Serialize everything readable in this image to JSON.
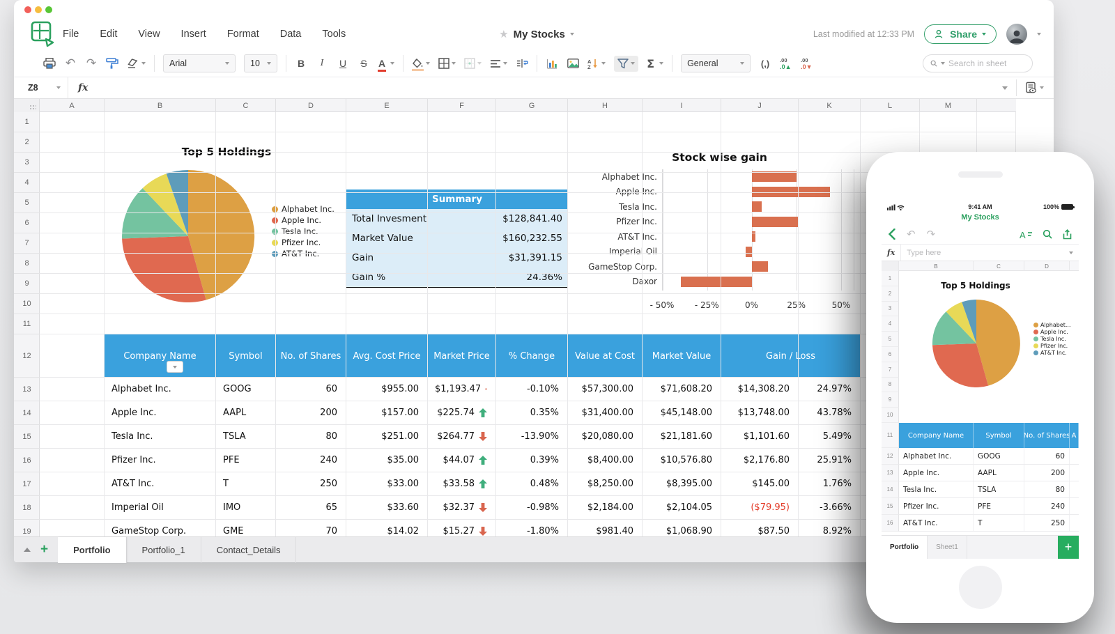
{
  "colors": {
    "accent_green": "#2f9e69",
    "header_blue": "#3aa1dd",
    "summary_bg": "#dcedf8",
    "bar_red": "#d9704f",
    "up_green": "#3fae7c",
    "down_red": "#d9654e",
    "negative_red": "#e33a27"
  },
  "menubar": {
    "menus": [
      "File",
      "Edit",
      "View",
      "Insert",
      "Format",
      "Data",
      "Tools"
    ],
    "doc_title": "My Stocks",
    "last_modified": "Last modified at 12:33 PM",
    "share_label": "Share"
  },
  "toolbar": {
    "font_name": "Arial",
    "font_size": "10",
    "bold": "B",
    "italic": "I",
    "underline": "U",
    "strikethrough": "S",
    "font_color": "A",
    "number_format": "General",
    "comma_format": "(,)",
    "increase_decimal": ".00",
    "decrease_decimal": ".00",
    "sum_label": "Σ",
    "sort_label": "A/Z",
    "search_placeholder": "Search in sheet"
  },
  "formula_bar": {
    "cell_ref": "Z8",
    "fx_label": "fx"
  },
  "grid": {
    "columns": [
      "A",
      "B",
      "C",
      "D",
      "E",
      "F",
      "G",
      "H",
      "I",
      "J",
      "K",
      "L",
      "M"
    ],
    "rows": [
      "1",
      "2",
      "3",
      "4",
      "5",
      "6",
      "7",
      "8",
      "9",
      "10",
      "11",
      "12",
      "13",
      "14",
      "15",
      "16",
      "17",
      "18",
      "19"
    ]
  },
  "chart_data": [
    {
      "type": "pie",
      "title": "Top 5 Holdings",
      "labels": [
        "Alphabet Inc.",
        "Apple Inc.",
        "Tesla Inc.",
        "Pfizer Inc.",
        "AT&T Inc."
      ],
      "values": [
        71608.2,
        45148.0,
        21181.6,
        10576.8,
        8395.0
      ],
      "colors": [
        "#dda044",
        "#e06950",
        "#74c3a0",
        "#e8d957",
        "#5e9cba"
      ],
      "legend_position": "right"
    },
    {
      "type": "bar",
      "orientation": "horizontal",
      "title": "Stock wise gain",
      "categories": [
        "Alphabet Inc.",
        "Apple Inc.",
        "Tesla Inc.",
        "Pfizer Inc.",
        "AT&T Inc.",
        "Imperial Oil",
        "GameStop Corp.",
        "Daxor"
      ],
      "values": [
        24.97,
        43.78,
        5.49,
        25.91,
        1.76,
        -3.66,
        8.92,
        -39.7
      ],
      "xlim": [
        -50,
        57
      ],
      "xtick_values": [
        -50,
        -25,
        0,
        25,
        50
      ],
      "xtick_labels": [
        "- 50%",
        "- 25%",
        "0%",
        "25%",
        "50%"
      ],
      "bar_color": "#d9704f",
      "grid": true,
      "ylabel": "",
      "xlabel": ""
    }
  ],
  "summary": {
    "title": "Summary",
    "rows": [
      {
        "label": "Total Invesment",
        "value": "$128,841.40"
      },
      {
        "label": "Market Value",
        "value": "$160,232.55"
      },
      {
        "label": "Gain",
        "value": "$31,391.15"
      },
      {
        "label": "Gain %",
        "value": "24.36%"
      }
    ]
  },
  "table": {
    "headers": [
      "Company Name",
      "Symbol",
      "No. of Shares",
      "Avg. Cost Price",
      "Market Price",
      "% Change",
      "Value at Cost",
      "Market Value",
      "Gain / Loss"
    ],
    "rows": [
      {
        "company": "Alphabet Inc.",
        "symbol": "GOOG",
        "shares": "60",
        "avg_cost": "$955.00",
        "market_price": "$1,193.47",
        "trend": "down",
        "pct_change": "-0.10%",
        "value_at_cost": "$57,300.00",
        "market_value": "$71,608.20",
        "gain": "$14,308.20",
        "gain_pct": "24.97%",
        "gain_neg": false
      },
      {
        "company": "Apple Inc.",
        "symbol": "AAPL",
        "shares": "200",
        "avg_cost": "$157.00",
        "market_price": "$225.74",
        "trend": "up",
        "pct_change": "0.35%",
        "value_at_cost": "$31,400.00",
        "market_value": "$45,148.00",
        "gain": "$13,748.00",
        "gain_pct": "43.78%",
        "gain_neg": false
      },
      {
        "company": "Tesla Inc.",
        "symbol": "TSLA",
        "shares": "80",
        "avg_cost": "$251.00",
        "market_price": "$264.77",
        "trend": "down",
        "pct_change": "-13.90%",
        "value_at_cost": "$20,080.00",
        "market_value": "$21,181.60",
        "gain": "$1,101.60",
        "gain_pct": "5.49%",
        "gain_neg": false
      },
      {
        "company": "Pfizer Inc.",
        "symbol": "PFE",
        "shares": "240",
        "avg_cost": "$35.00",
        "market_price": "$44.07",
        "trend": "up",
        "pct_change": "0.39%",
        "value_at_cost": "$8,400.00",
        "market_value": "$10,576.80",
        "gain": "$2,176.80",
        "gain_pct": "25.91%",
        "gain_neg": false
      },
      {
        "company": "AT&T Inc.",
        "symbol": "T",
        "shares": "250",
        "avg_cost": "$33.00",
        "market_price": "$33.58",
        "trend": "up",
        "pct_change": "0.48%",
        "value_at_cost": "$8,250.00",
        "market_value": "$8,395.00",
        "gain": "$145.00",
        "gain_pct": "1.76%",
        "gain_neg": false
      },
      {
        "company": "Imperial Oil",
        "symbol": "IMO",
        "shares": "65",
        "avg_cost": "$33.60",
        "market_price": "$32.37",
        "trend": "down",
        "pct_change": "-0.98%",
        "value_at_cost": "$2,184.00",
        "market_value": "$2,104.05",
        "gain": "($79.95)",
        "gain_pct": "-3.66%",
        "gain_neg": true
      },
      {
        "company": "GameStop Corp.",
        "symbol": "GME",
        "shares": "70",
        "avg_cost": "$14.02",
        "market_price": "$15.27",
        "trend": "down",
        "pct_change": "-1.80%",
        "value_at_cost": "$981.40",
        "market_value": "$1,068.90",
        "gain": "$87.50",
        "gain_pct": "8.92%",
        "gain_neg": false
      }
    ]
  },
  "sheet_tabs": [
    {
      "label": "Portfolio",
      "active": true
    },
    {
      "label": "Portfolio_1",
      "active": false
    },
    {
      "label": "Contact_Details",
      "active": false
    }
  ],
  "phone": {
    "status": {
      "time": "9:41 AM",
      "battery_pct": "100%"
    },
    "title": "My Stocks",
    "fx_label": "fx",
    "formula_placeholder": "Type here",
    "columns": [
      "B",
      "C",
      "D"
    ],
    "rows": [
      "1",
      "2",
      "3",
      "4",
      "5",
      "6",
      "7",
      "8",
      "9",
      "10",
      "11",
      "12",
      "13",
      "14",
      "15",
      "16"
    ],
    "chart_title": "Top 5 Holdings",
    "legend": [
      "Alphabet...",
      "Apple Inc.",
      "Tesla Inc.",
      "Pfizer Inc.",
      "AT&T Inc."
    ],
    "table_headers": [
      "Company Name",
      "Symbol",
      "No. of Shares",
      "A"
    ],
    "table_rows": [
      [
        "Alphabet Inc.",
        "GOOG",
        "60"
      ],
      [
        "Apple Inc.",
        "AAPL",
        "200"
      ],
      [
        "Tesla Inc.",
        "TSLA",
        "80"
      ],
      [
        "Pfizer Inc.",
        "PFE",
        "240"
      ],
      [
        "AT&T Inc.",
        "T",
        "250"
      ]
    ],
    "tabs": [
      {
        "label": "Portfolio",
        "active": true
      },
      {
        "label": "Sheet1",
        "active": false
      }
    ]
  }
}
